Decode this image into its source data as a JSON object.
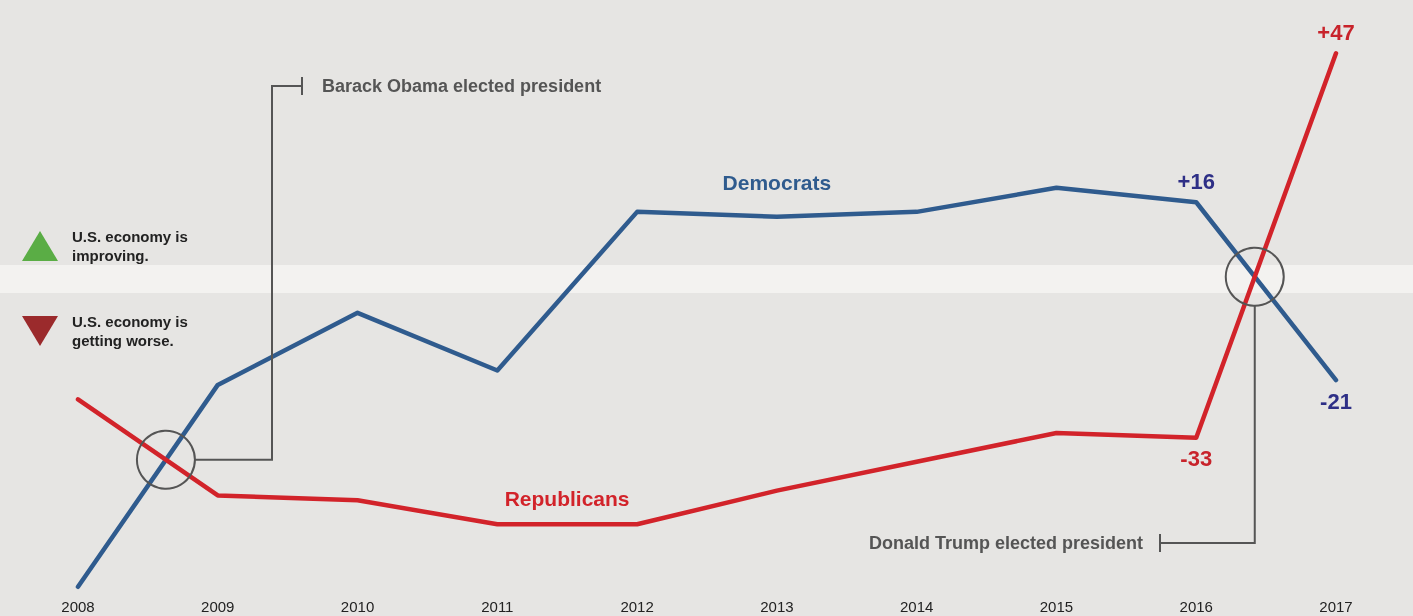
{
  "chart_data": {
    "type": "line",
    "categories": [
      "2008",
      "2009",
      "2010",
      "2011",
      "2012",
      "2013",
      "2014",
      "2015",
      "2016",
      "2017"
    ],
    "series": [
      {
        "name": "Democrats",
        "color": "#2f5b8e",
        "values": [
          -64,
          -22,
          -7,
          -19,
          14,
          13,
          14,
          19,
          16,
          -21
        ],
        "value_labels": [
          null,
          null,
          null,
          null,
          null,
          null,
          null,
          null,
          "+16",
          "-21"
        ]
      },
      {
        "name": "Republicans",
        "color": "#d2232a",
        "values": [
          -25,
          -45,
          -46,
          -51,
          -51,
          -44,
          -38,
          -32,
          -33,
          47
        ],
        "value_labels": [
          null,
          null,
          null,
          null,
          null,
          null,
          null,
          null,
          "-33",
          "+47"
        ]
      }
    ],
    "annotations": [
      "U.S. economy is improving.",
      "U.S. economy is getting worse.",
      "Barack Obama elected president",
      "Donald Trump elected president"
    ],
    "marker": "none",
    "grid": false,
    "legend": false
  }
}
